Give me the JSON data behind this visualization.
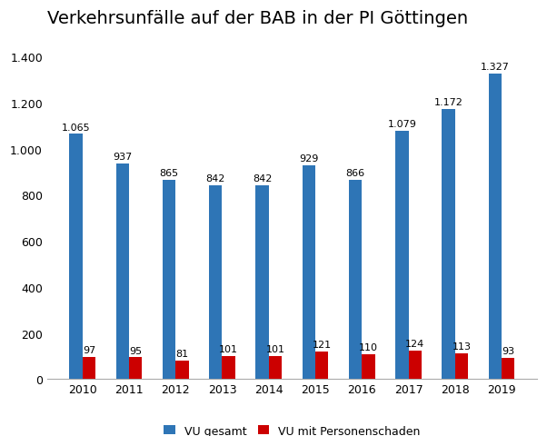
{
  "title": "Verkehrsunfälle auf der BAB in der PI Göttingen",
  "years": [
    2010,
    2011,
    2012,
    2013,
    2014,
    2015,
    2016,
    2017,
    2018,
    2019
  ],
  "vu_gesamt": [
    1065,
    937,
    865,
    842,
    842,
    929,
    866,
    1079,
    1172,
    1327
  ],
  "vu_personen": [
    97,
    95,
    81,
    101,
    101,
    121,
    110,
    124,
    113,
    93
  ],
  "color_blue": "#2e75b6",
  "color_red": "#cc0000",
  "legend_labels": [
    "VU gesamt",
    "VU mit Personenschaden"
  ],
  "ylim": [
    0,
    1480
  ],
  "yticks": [
    0,
    200,
    400,
    600,
    800,
    1000,
    1200,
    1400
  ],
  "bar_width": 0.28,
  "title_fontsize": 14,
  "label_fontsize": 8,
  "tick_fontsize": 9,
  "legend_fontsize": 9,
  "background_color": "#ffffff"
}
